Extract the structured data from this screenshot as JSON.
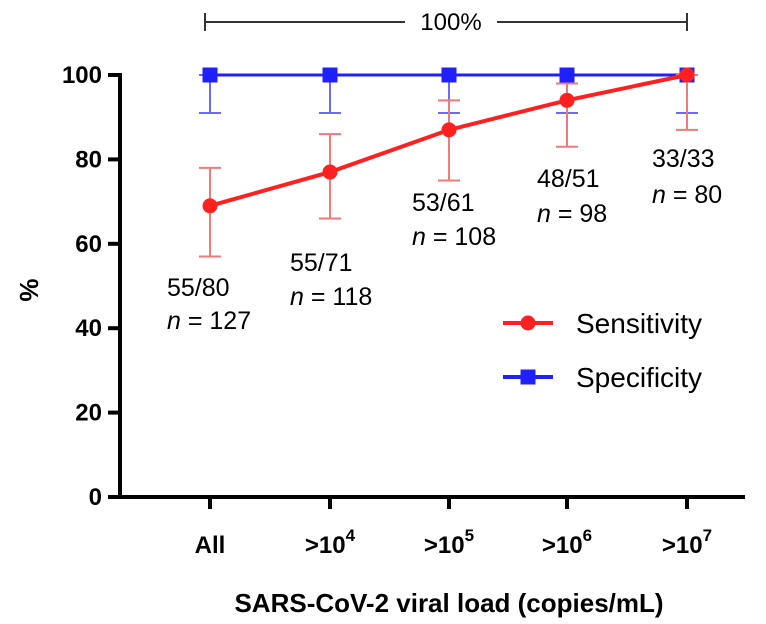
{
  "chart_data": {
    "type": "line",
    "categories": [
      "All",
      ">10^4",
      ">10^5",
      ">10^6",
      ">10^7"
    ],
    "x_tick_labels": [
      {
        "base": "All",
        "exp": ""
      },
      {
        "base": ">10",
        "exp": "4"
      },
      {
        "base": ">10",
        "exp": "5"
      },
      {
        "base": ">10",
        "exp": "6"
      },
      {
        "base": ">10",
        "exp": "7"
      }
    ],
    "xlabel": "SARS-CoV-2 viral load (copies/mL)",
    "ylabel": "%",
    "ylim": [
      0,
      100
    ],
    "yticks": [
      "0",
      "20",
      "40",
      "60",
      "80",
      "100"
    ],
    "series": [
      {
        "name": "Sensitivity",
        "color": "#ff2020",
        "marker": "circle",
        "values": [
          69,
          77,
          87,
          94,
          100
        ],
        "error_low": [
          57,
          66,
          75,
          83,
          87
        ],
        "error_high": [
          78,
          86,
          94,
          98,
          100
        ]
      },
      {
        "name": "Specificity",
        "color": "#2020ff",
        "marker": "square",
        "values": [
          100,
          100,
          100,
          100,
          100
        ],
        "error_low": [
          91,
          91,
          91,
          91,
          91
        ],
        "error_high": [
          100,
          100,
          100,
          100,
          100
        ]
      }
    ],
    "annotations": [
      {
        "ratio": "55/80",
        "n_label": "n",
        "n_value": " = 127"
      },
      {
        "ratio": "55/71",
        "n_label": "n",
        "n_value": " = 118"
      },
      {
        "ratio": "53/61",
        "n_label": "n",
        "n_value": " = 108"
      },
      {
        "ratio": "48/51",
        "n_label": "n",
        "n_value": " = 98"
      },
      {
        "ratio": "33/33",
        "n_label": "n",
        "n_value": " = 80"
      }
    ],
    "bracket_label": "100%",
    "legend_position": "right"
  }
}
